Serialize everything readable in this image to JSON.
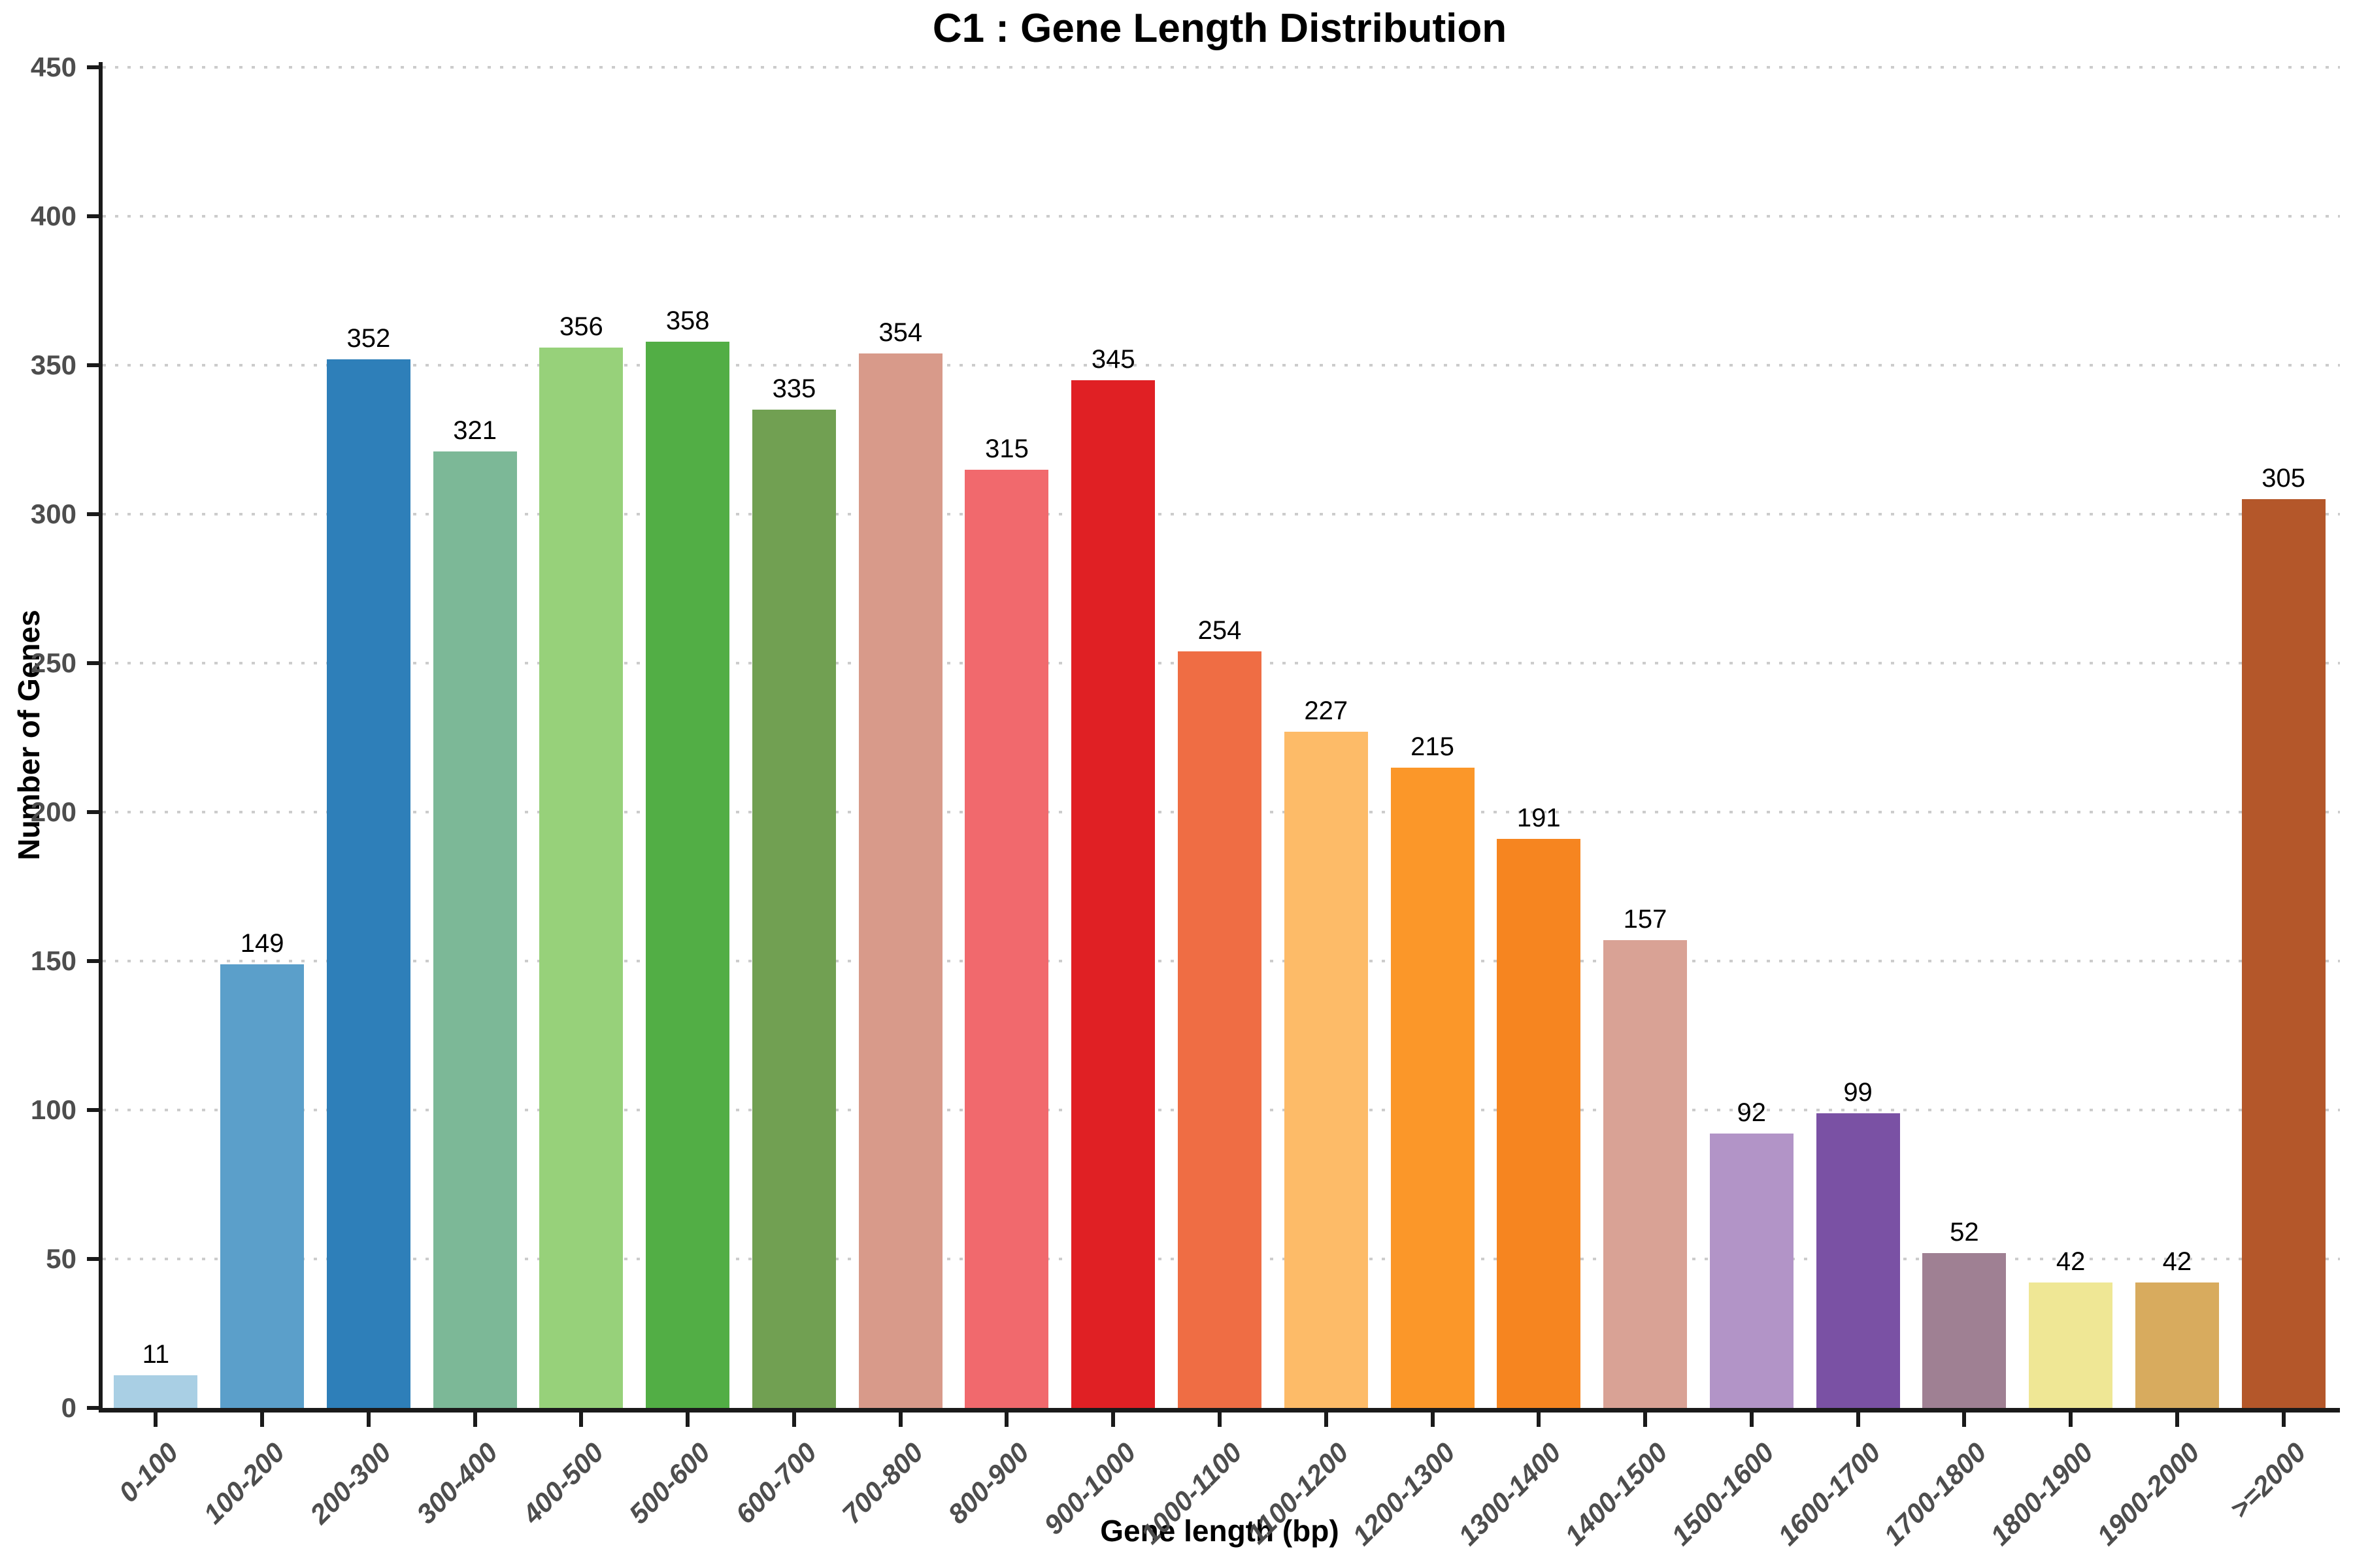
{
  "title": "C1 : Gene Length Distribution",
  "chart_data": {
    "type": "bar",
    "title": "C1 : Gene Length Distribution",
    "xlabel": "Gene length (bp)",
    "ylabel": "Number of Genes",
    "ylim": [
      0,
      450
    ],
    "ytick_step": 50,
    "ytick_labels": [
      "0",
      "50",
      "100",
      "150",
      "200",
      "250",
      "300",
      "350",
      "400",
      "450"
    ],
    "grid": "horizontal-dotted",
    "legend_position": "none",
    "categories": [
      "0-100",
      "100-200",
      "200-300",
      "300-400",
      "400-500",
      "500-600",
      "600-700",
      "700-800",
      "800-900",
      "900-1000",
      "1000-1100",
      "1100-1200",
      "1200-1300",
      "1300-1400",
      "1400-1500",
      "1500-1600",
      "1600-1700",
      "1700-1800",
      "1800-1900",
      "1900-2000",
      ">=2000"
    ],
    "values": [
      11,
      149,
      352,
      321,
      356,
      358,
      335,
      354,
      315,
      345,
      254,
      227,
      215,
      191,
      157,
      92,
      99,
      52,
      42,
      42,
      305
    ],
    "bar_colors": [
      "#a9cfe4",
      "#5b9fca",
      "#2e7fb9",
      "#7cb897",
      "#97d17a",
      "#52ae45",
      "#71a052",
      "#d89a8a",
      "#f1696d",
      "#e02024",
      "#ef6d44",
      "#fdbb68",
      "#fb9729",
      "#f68520",
      "#d9a295",
      "#b294c7",
      "#7a51a4",
      "#9f8093",
      "#efe795",
      "#d8ab5e",
      "#b4572a"
    ],
    "value_labels_shown": true,
    "colors": {
      "axis": "#1a1a1a",
      "tick_label": "#4d4d4d",
      "gridline": "#cccccc",
      "value_label": "#000000",
      "background": "#ffffff"
    }
  }
}
